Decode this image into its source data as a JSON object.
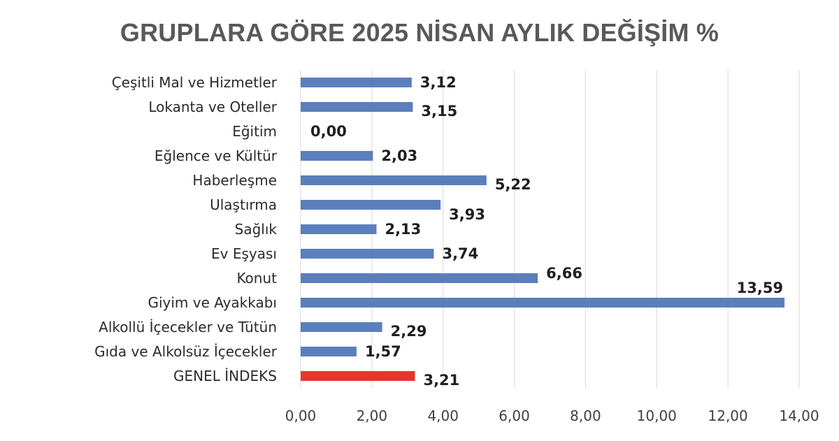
{
  "chart_data": {
    "type": "bar",
    "orientation": "horizontal",
    "title": "GRUPLARA GÖRE 2025 NİSAN AYLIK DEĞİŞİM %",
    "xlabel": "",
    "ylabel": "",
    "xlim": [
      0,
      14
    ],
    "x_ticks": [
      "0,00",
      "2,00",
      "4,00",
      "6,00",
      "8,00",
      "10,00",
      "12,00",
      "14,00"
    ],
    "grid": true,
    "legend": "none",
    "categories": [
      "Çeşitli Mal ve Hizmetler",
      "Lokanta ve Oteller",
      "Eğitim",
      "Eğlence ve Kültür",
      "Haberleşme",
      "Ulaştırma",
      "Sağlık",
      "Ev Eşyası",
      "Konut",
      "Giyim ve Ayakkabı",
      "Alkollü İçecekler ve Tütün",
      "Gıda ve Alkolsüz İçecekler",
      "GENEL İNDEKS"
    ],
    "values": [
      3.12,
      3.15,
      0.0,
      2.03,
      5.22,
      3.93,
      2.13,
      3.74,
      6.66,
      13.59,
      2.29,
      1.57,
      3.21
    ],
    "value_labels": [
      "3,12",
      "3,15",
      "0,00",
      "2,03",
      "5,22",
      "3,93",
      "2,13",
      "3,74",
      "6,66",
      "13,59",
      "2,29",
      "1,57",
      "3,21"
    ],
    "bar_colors": [
      "#5b7fbd",
      "#5b7fbd",
      "#5b7fbd",
      "#5b7fbd",
      "#5b7fbd",
      "#5b7fbd",
      "#5b7fbd",
      "#5b7fbd",
      "#5b7fbd",
      "#5b7fbd",
      "#5b7fbd",
      "#5b7fbd",
      "#e8352b"
    ]
  }
}
